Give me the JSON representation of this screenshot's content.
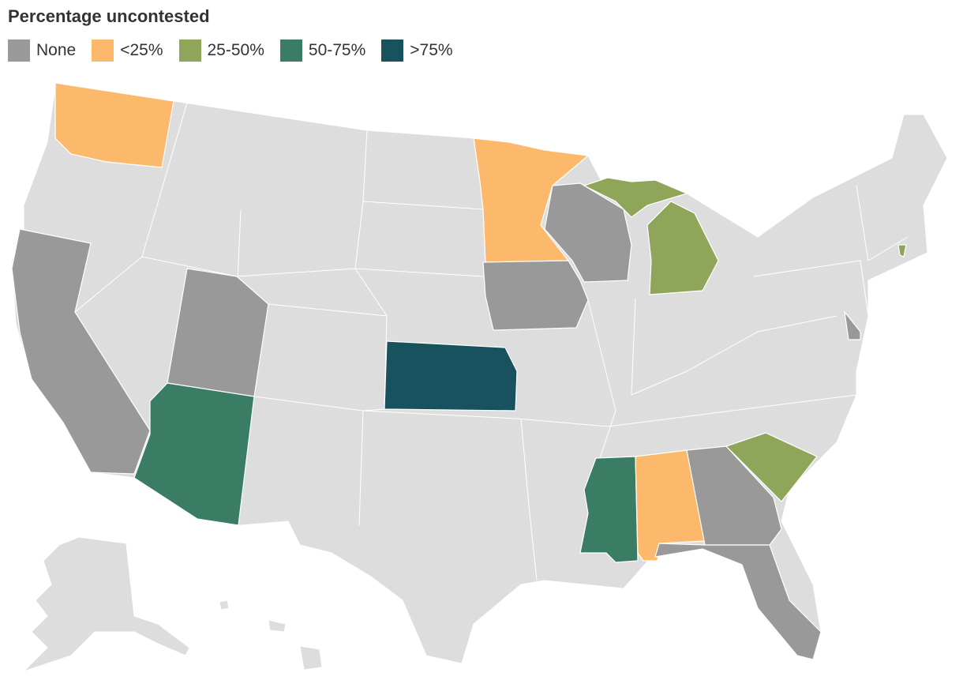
{
  "title": "Percentage uncontested",
  "legend": [
    {
      "label": "None",
      "color": "#999999"
    },
    {
      "label": "<25%",
      "color": "#fdb96b"
    },
    {
      "label": "25-50%",
      "color": "#8fa55a"
    },
    {
      "label": "50-75%",
      "color": "#3a7d64"
    },
    {
      "label": ">75%",
      "color": "#17525e"
    }
  ]
}
